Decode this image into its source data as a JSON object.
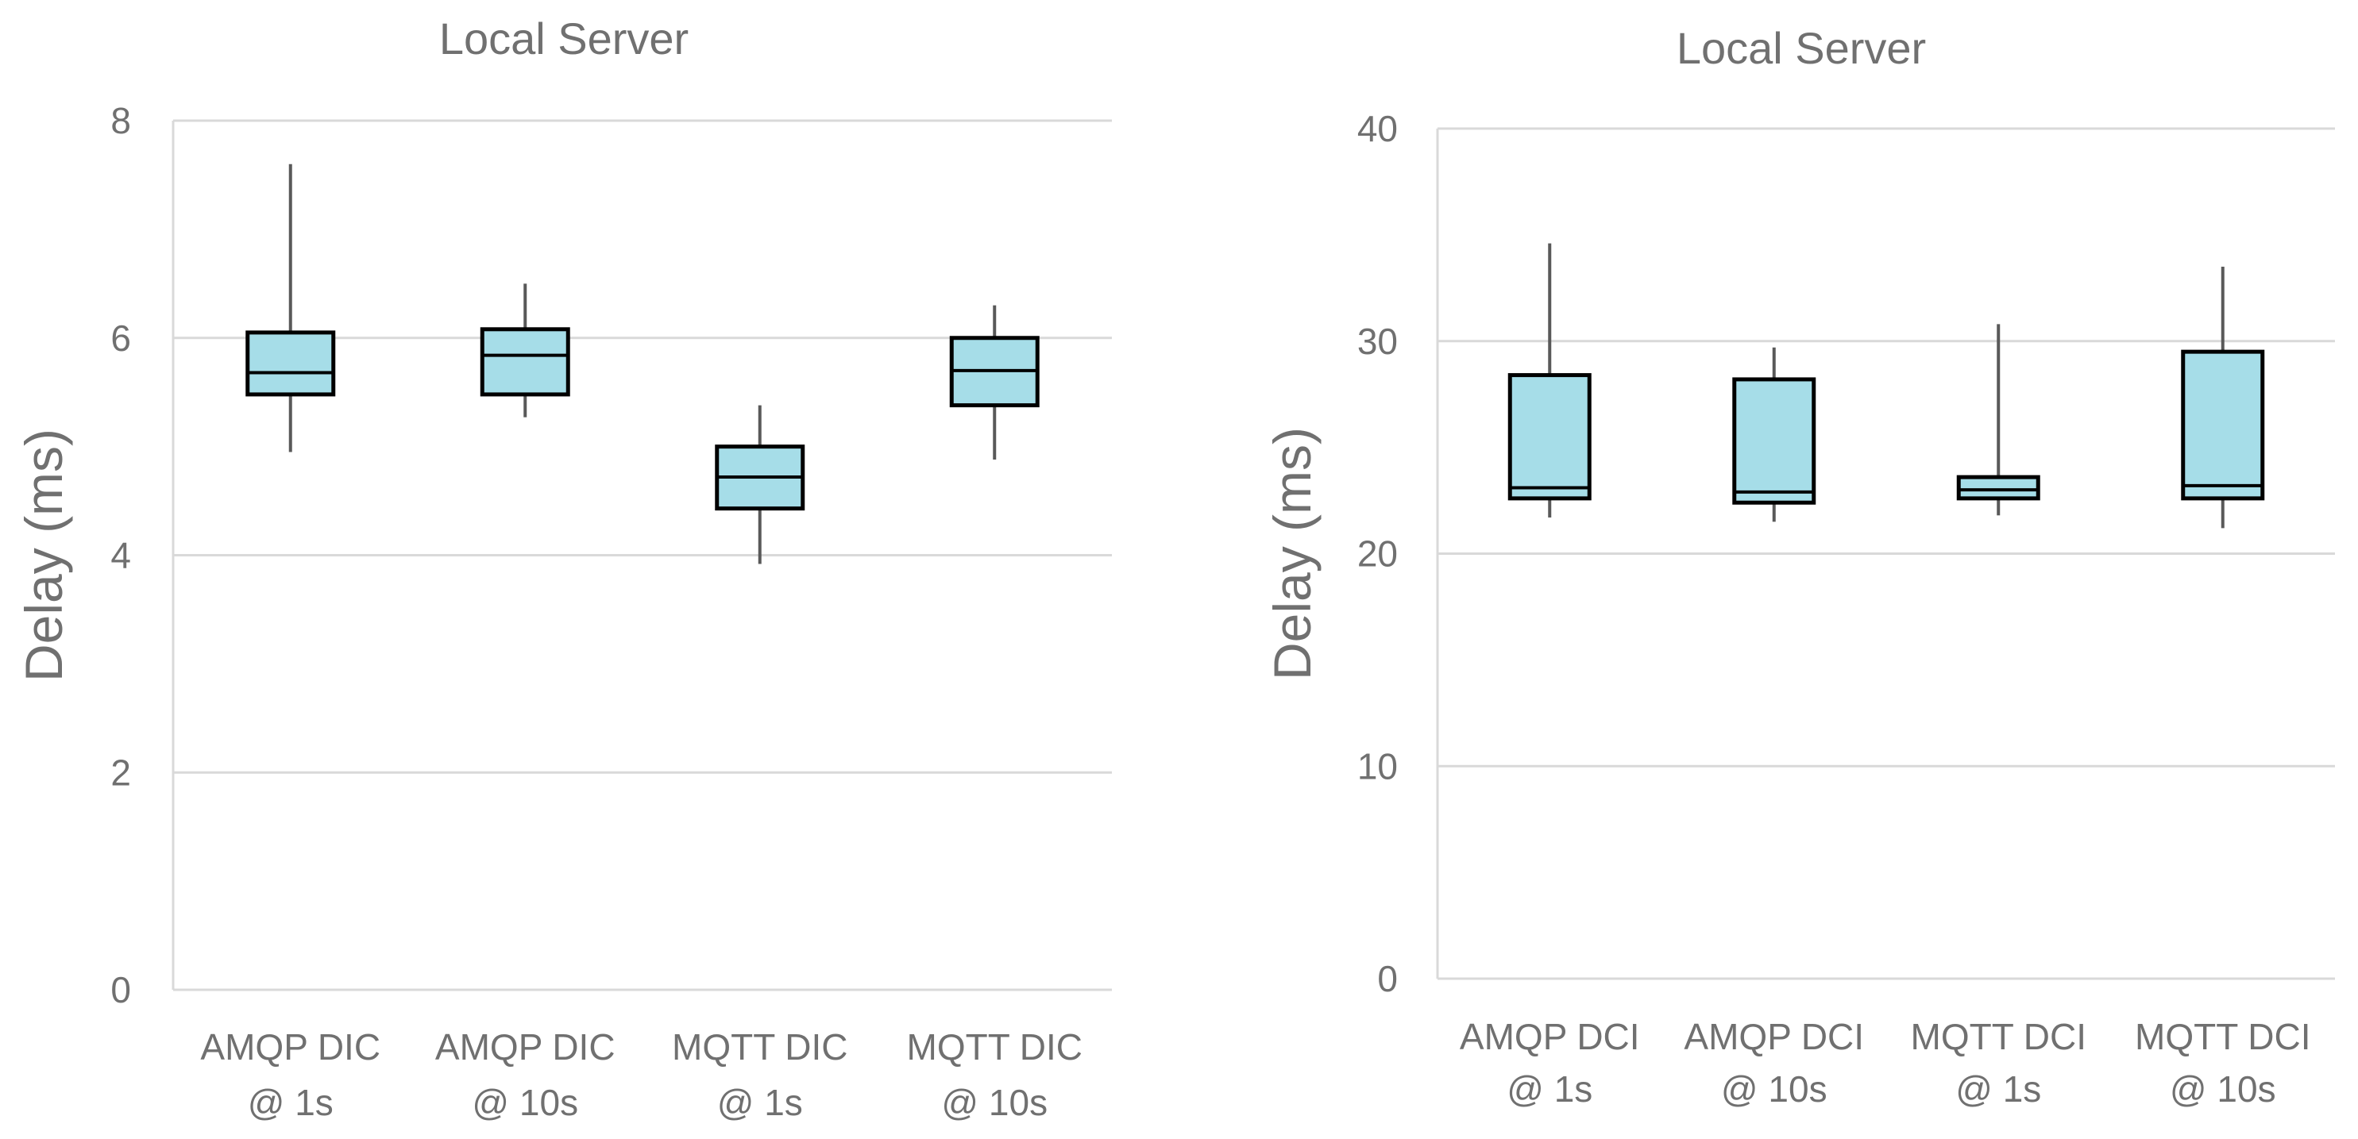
{
  "colors": {
    "box_fill": "#a6dde8",
    "box_stroke": "#000000",
    "whisker": "#595959",
    "grid": "#d9d9d9",
    "text": "#707070"
  },
  "chart_data": [
    {
      "type": "boxplot",
      "title": "Local Server",
      "xlabel": "",
      "ylabel": "Delay (ms)",
      "ylim": [
        0,
        8
      ],
      "yticks": [
        0,
        2,
        4,
        6,
        8
      ],
      "grid": true,
      "categories": [
        [
          "AMQP DIC",
          "@ 1s"
        ],
        [
          "AMQP DIC",
          "@ 10s"
        ],
        [
          "MQTT DIC",
          "@ 1s"
        ],
        [
          "MQTT DIC",
          "@ 10s"
        ]
      ],
      "boxes": [
        {
          "min": 4.95,
          "q1": 5.48,
          "median": 5.68,
          "q3": 6.05,
          "max": 7.6
        },
        {
          "min": 5.27,
          "q1": 5.48,
          "median": 5.84,
          "q3": 6.08,
          "max": 6.5
        },
        {
          "min": 3.92,
          "q1": 4.43,
          "median": 4.72,
          "q3": 5.0,
          "max": 5.38
        },
        {
          "min": 4.88,
          "q1": 5.38,
          "median": 5.7,
          "q3": 6.0,
          "max": 6.3
        }
      ]
    },
    {
      "type": "boxplot",
      "title": "Local Server",
      "xlabel": "",
      "ylabel": "Delay (ms)",
      "ylim": [
        0,
        40
      ],
      "yticks": [
        0,
        10,
        20,
        30,
        40
      ],
      "grid": true,
      "categories": [
        [
          "AMQP DCI",
          "@ 1s"
        ],
        [
          "AMQP DCI",
          "@ 10s"
        ],
        [
          "MQTT DCI",
          "@ 1s"
        ],
        [
          "MQTT DCI",
          "@ 10s"
        ]
      ],
      "boxes": [
        {
          "min": 21.7,
          "q1": 22.6,
          "median": 23.1,
          "q3": 28.4,
          "max": 34.6
        },
        {
          "min": 21.5,
          "q1": 22.4,
          "median": 22.9,
          "q3": 28.2,
          "max": 29.7
        },
        {
          "min": 21.8,
          "q1": 22.6,
          "median": 23.0,
          "q3": 23.6,
          "max": 30.8
        },
        {
          "min": 21.2,
          "q1": 22.6,
          "median": 23.2,
          "q3": 29.5,
          "max": 33.5
        }
      ]
    }
  ]
}
